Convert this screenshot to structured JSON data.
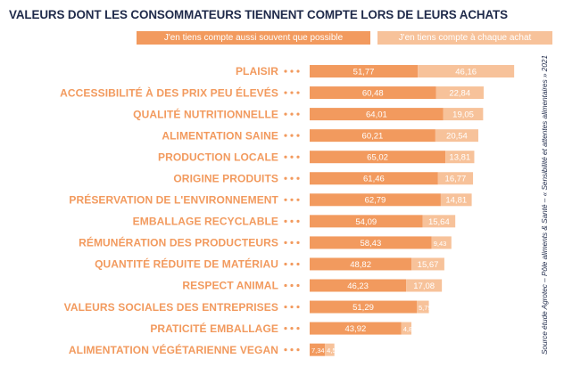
{
  "colors": {
    "series_a": "#f29a5e",
    "series_b": "#f7c29a",
    "category_text": "#f29a5e",
    "title_text": "#1f2a4a"
  },
  "chart_data": {
    "type": "bar",
    "orientation": "horizontal",
    "stacked": true,
    "title": "VALEURS DONT LES CONSOMMATEURS TIENNENT COMPTE LORS DE LEURS ACHATS",
    "legend_position": "top-right",
    "source": "Source étude Agrotec – Pôle aliments & Santé – « Sensibilité et attentes alimentaires » 2021",
    "categories": [
      "PLAISIR",
      "ACCESSIBILITÉ À DES PRIX PEU ÉLEVÉS",
      "QUALITÉ  NUTRITIONNELLE",
      "ALIMENTATION SAINE",
      "PRODUCTION LOCALE",
      "ORIGINE PRODUITS",
      "PRÉSERVATION DE L'ENVIRONNEMENT",
      "EMBALLAGE RECYCLABLE",
      "RÉMUNÉRATION DES PRODUCTEURS",
      "QUANTITÉ RÉDUITE DE MATÉRIAU",
      "RESPECT ANIMAL",
      "VALEURS SOCIALES DES ENTREPRISES",
      "PRATICITÉ  EMBALLAGE",
      "ALIMENTATION VÉGÉTARIENNE VEGAN"
    ],
    "series": [
      {
        "name": "J'en tiens compte aussi souvent que possible",
        "values": [
          51.77,
          60.48,
          64.01,
          60.21,
          65.02,
          61.46,
          62.79,
          54.09,
          58.43,
          48.82,
          46.23,
          51.29,
          43.92,
          7.34
        ],
        "labels": [
          "51,77",
          "60,48",
          "64,01",
          "60,21",
          "65,02",
          "61,46",
          "62,79",
          "54,09",
          "58,43",
          "48,82",
          "46,23",
          "51,29",
          "43,92",
          "7,34"
        ]
      },
      {
        "name": "J'en tiens compte à chaque achat",
        "values": [
          46.16,
          22.84,
          19.05,
          20.54,
          13.81,
          16.77,
          14.81,
          15.64,
          9.43,
          15.67,
          17.08,
          5.79,
          4.8,
          4.5
        ],
        "labels": [
          "46,16",
          "22,84",
          "19,05",
          "20,54",
          "13,81",
          "16,77",
          "14,81",
          "15,64",
          "9,43",
          "15,67",
          "17,08",
          "5,79",
          "4,80",
          "4,5"
        ]
      }
    ],
    "xlim": [
      0,
      100
    ],
    "grid": false
  }
}
